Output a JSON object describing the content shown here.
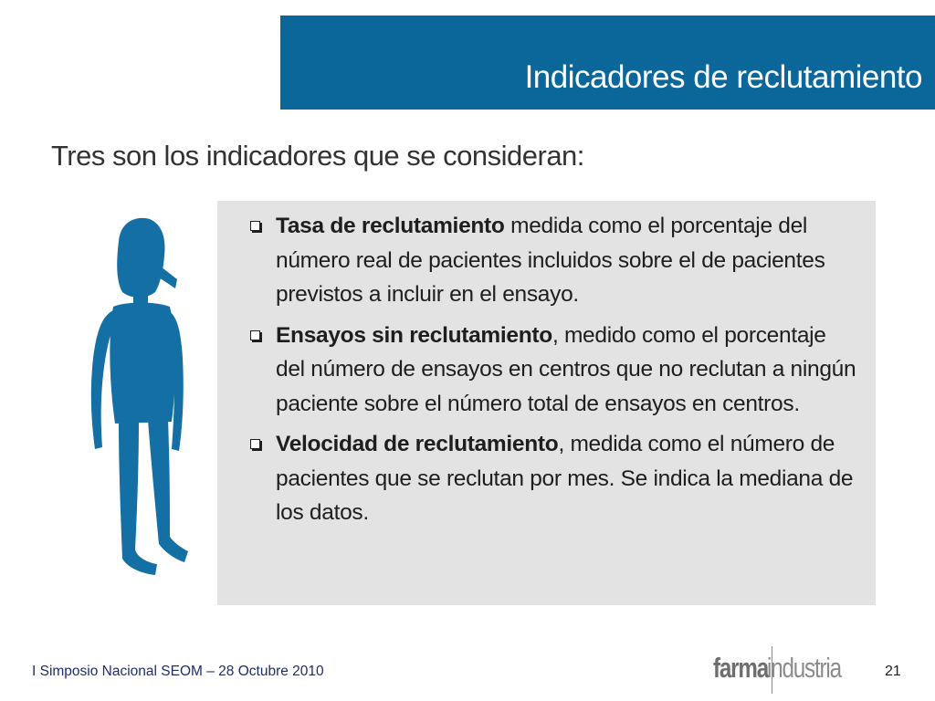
{
  "slide": {
    "title": "Indicadores de reclutamiento",
    "subtitle": "Tres son los indicadores que se consideran:",
    "bullets": [
      {
        "bold": "Tasa de reclutamiento",
        "text": " medida como el porcentaje del número real de pacientes incluidos sobre el de pacientes previstos a incluir en el ensayo."
      },
      {
        "bold": "Ensayos sin reclutamiento",
        "text": ", medido como el porcentaje del número de ensayos en centros que no reclutan a ningún paciente sobre el número total de ensayos en centros."
      },
      {
        "bold": "Velocidad de reclutamiento",
        "text": ", medida como el número de pacientes que se reclutan por mes. Se indica la mediana de los datos."
      }
    ]
  },
  "footer": {
    "event": "I Simposio Nacional SEOM – 28 Octubre 2010",
    "logo_part1": "farma",
    "logo_part2": "industria",
    "page_number": "21"
  },
  "colors": {
    "title_bar": "#0b6699",
    "figure": "#136fa4",
    "content_box": "#e3e3e3"
  },
  "icons": {
    "figure": "person-figure-icon",
    "bullet": "checkbox-bullet-icon"
  }
}
